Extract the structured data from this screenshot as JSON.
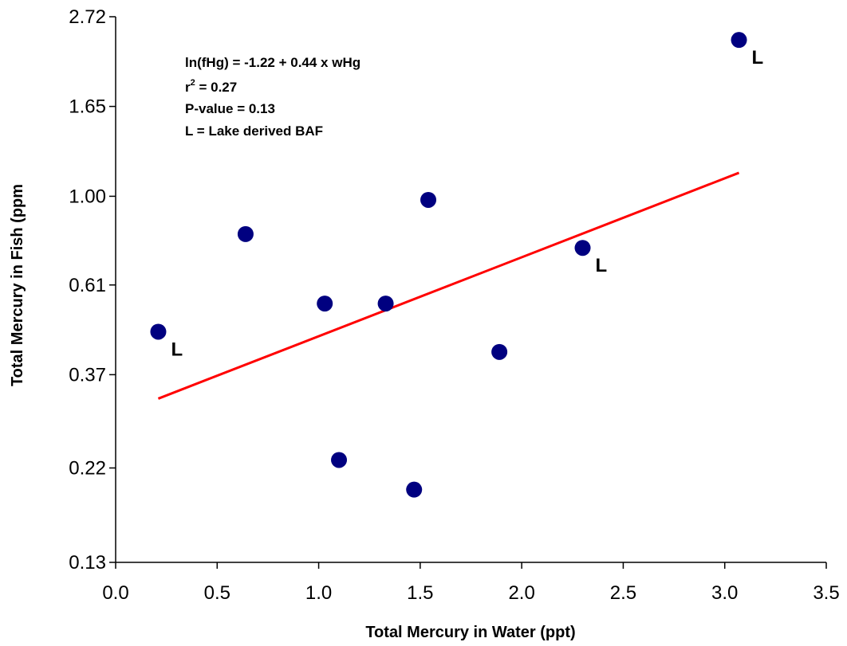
{
  "chart_data": {
    "type": "scatter",
    "title": "",
    "xlabel": "Total Mercury in Water (ppt)",
    "ylabel": "Total Mercury in Fish (ppm",
    "xlim": [
      0.0,
      3.5
    ],
    "ylim": [
      0.13,
      2.72
    ],
    "y_scale": "log",
    "x_ticks": [
      "0.0",
      "0.5",
      "1.0",
      "1.5",
      "2.0",
      "2.5",
      "3.0",
      "3.5"
    ],
    "x_tick_values": [
      0.0,
      0.5,
      1.0,
      1.5,
      2.0,
      2.5,
      3.0,
      3.5
    ],
    "y_ticks": [
      "0.13",
      "0.22",
      "0.37",
      "0.61",
      "1.00",
      "1.65",
      "2.72"
    ],
    "y_tick_values": [
      0.13,
      0.22,
      0.37,
      0.61,
      1.0,
      1.65,
      2.72
    ],
    "grid": false,
    "points": [
      {
        "x": 0.21,
        "y": 0.47,
        "label": "L"
      },
      {
        "x": 0.64,
        "y": 0.81,
        "label": ""
      },
      {
        "x": 1.03,
        "y": 0.55,
        "label": ""
      },
      {
        "x": 1.1,
        "y": 0.23,
        "label": ""
      },
      {
        "x": 1.33,
        "y": 0.55,
        "label": ""
      },
      {
        "x": 1.47,
        "y": 0.195,
        "label": ""
      },
      {
        "x": 1.54,
        "y": 0.98,
        "label": ""
      },
      {
        "x": 1.89,
        "y": 0.42,
        "label": ""
      },
      {
        "x": 2.3,
        "y": 0.75,
        "label": "L"
      },
      {
        "x": 3.07,
        "y": 2.39,
        "label": "L"
      }
    ],
    "trendline": {
      "intercept": -1.22,
      "slope": 0.44,
      "x_start": 0.21,
      "x_end": 3.07
    },
    "annotations": [
      {
        "id": "equation",
        "text": "ln(fHg) = -1.22 + 0.44 x wHg"
      },
      {
        "id": "r-squared-base",
        "text": "r"
      },
      {
        "id": "r-squared-sup",
        "text": "2"
      },
      {
        "id": "r-squared-rest",
        "text": " = 0.27"
      },
      {
        "id": "p-value",
        "text": "P-value = 0.13"
      },
      {
        "id": "legend-l",
        "text": "L = Lake derived BAF"
      }
    ],
    "colors": {
      "points": "#000080",
      "trendline": "#ff0000",
      "axes": "#000000"
    }
  }
}
